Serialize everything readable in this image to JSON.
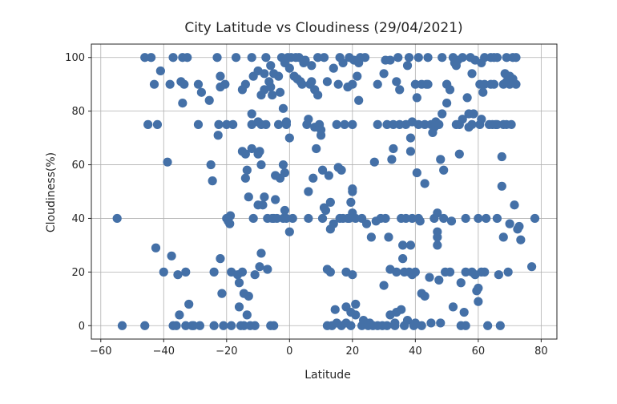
{
  "chart_data": {
    "type": "scatter",
    "title": "City Latitude vs Cloudiness (29/04/2021)",
    "xlabel": "Latitude",
    "ylabel": "Cloudiness(%)",
    "xlim": [
      -63,
      85
    ],
    "ylim": [
      -5,
      105
    ],
    "xticks": [
      -60,
      -40,
      -20,
      0,
      20,
      40,
      60,
      80
    ],
    "yticks": [
      0,
      20,
      40,
      60,
      80,
      100
    ],
    "xtick_labels": [
      "−60",
      "−40",
      "−20",
      "0",
      "20",
      "40",
      "60",
      "80"
    ],
    "ytick_labels": [
      "0",
      "20",
      "40",
      "60",
      "80",
      "100"
    ],
    "grid": true,
    "colors": {
      "marker": "#4470a7",
      "grid": "#b0b0b0",
      "axis": "#262626"
    },
    "points": [
      [
        -54.8,
        40
      ],
      [
        -53.2,
        0
      ],
      [
        -46,
        0
      ],
      [
        -46,
        100
      ],
      [
        -45,
        75
      ],
      [
        -44,
        100
      ],
      [
        -43,
        90
      ],
      [
        -42,
        75
      ],
      [
        -42.5,
        29
      ],
      [
        -41,
        95
      ],
      [
        -40,
        20
      ],
      [
        -38.8,
        61
      ],
      [
        -38,
        90
      ],
      [
        -37.5,
        26
      ],
      [
        -37,
        100
      ],
      [
        -37,
        0
      ],
      [
        -36,
        0
      ],
      [
        -35.5,
        19
      ],
      [
        -35,
        4
      ],
      [
        -34.5,
        91
      ],
      [
        -34,
        100
      ],
      [
        -34,
        83
      ],
      [
        -33.5,
        90
      ],
      [
        -33,
        20
      ],
      [
        -33,
        0
      ],
      [
        -32.5,
        100
      ],
      [
        -32,
        8
      ],
      [
        -31,
        0
      ],
      [
        -30.5,
        0
      ],
      [
        -29,
        75
      ],
      [
        -29,
        90
      ],
      [
        -28.5,
        0
      ],
      [
        -28,
        87
      ],
      [
        -25.5,
        84
      ],
      [
        -25,
        60
      ],
      [
        -24.5,
        54
      ],
      [
        -24,
        20
      ],
      [
        -24,
        0
      ],
      [
        -23,
        100
      ],
      [
        -22.7,
        71
      ],
      [
        -22.5,
        75
      ],
      [
        -22,
        93
      ],
      [
        -22,
        89
      ],
      [
        -22,
        25
      ],
      [
        -21.5,
        12
      ],
      [
        -21,
        0
      ],
      [
        -20.5,
        90
      ],
      [
        -20,
        75
      ],
      [
        -20,
        40
      ],
      [
        -19.5,
        39
      ],
      [
        -19,
        38
      ],
      [
        -18.8,
        41
      ],
      [
        -18.5,
        20
      ],
      [
        -18.5,
        0
      ],
      [
        -18,
        75
      ],
      [
        -17,
        100
      ],
      [
        -16.5,
        19
      ],
      [
        -16,
        16
      ],
      [
        -16,
        7
      ],
      [
        -15.5,
        0
      ],
      [
        -15,
        88
      ],
      [
        -15,
        65
      ],
      [
        -15,
        20
      ],
      [
        -14.5,
        12
      ],
      [
        -14.5,
        0
      ],
      [
        -14,
        90
      ],
      [
        -14,
        64
      ],
      [
        -14,
        55
      ],
      [
        -13.5,
        58
      ],
      [
        -13.5,
        4
      ],
      [
        -13,
        48
      ],
      [
        -13,
        11
      ],
      [
        -12.5,
        0
      ],
      [
        -12,
        100
      ],
      [
        -12,
        79
      ],
      [
        -12,
        75
      ],
      [
        -12,
        66
      ],
      [
        -11.5,
        93
      ],
      [
        -11.5,
        40
      ],
      [
        -11,
        19
      ],
      [
        -11,
        0
      ],
      [
        -10,
        45
      ],
      [
        -10,
        64
      ],
      [
        -10,
        76
      ],
      [
        -10,
        95
      ],
      [
        -9.5,
        22
      ],
      [
        -9.5,
        65
      ],
      [
        -9,
        60
      ],
      [
        -9,
        27
      ],
      [
        -9,
        86
      ],
      [
        -9,
        75
      ],
      [
        -8.5,
        45
      ],
      [
        -8,
        94
      ],
      [
        -8,
        88
      ],
      [
        -8,
        48
      ],
      [
        -7.5,
        100
      ],
      [
        -7.5,
        75
      ],
      [
        -7,
        21
      ],
      [
        -7,
        40
      ],
      [
        -6.5,
        91
      ],
      [
        -6,
        97
      ],
      [
        -6,
        89
      ],
      [
        -6,
        0
      ],
      [
        -5.5,
        40
      ],
      [
        -5.5,
        86
      ],
      [
        -5,
        94
      ],
      [
        -5,
        40
      ],
      [
        -5,
        0
      ],
      [
        -4.5,
        47
      ],
      [
        -4.5,
        56
      ],
      [
        -4,
        40
      ],
      [
        -3.5,
        93
      ],
      [
        -3.5,
        75
      ],
      [
        -3,
        87
      ],
      [
        -3,
        55
      ],
      [
        -2.5,
        100
      ],
      [
        -2,
        81
      ],
      [
        -2,
        60
      ],
      [
        -2,
        40
      ],
      [
        -1.5,
        98
      ],
      [
        -1.5,
        57
      ],
      [
        -1.5,
        43
      ],
      [
        -1,
        76
      ],
      [
        -1,
        75
      ],
      [
        -1,
        40
      ],
      [
        -0.5,
        100
      ],
      [
        0,
        35
      ],
      [
        0,
        70
      ],
      [
        0,
        96
      ],
      [
        0.5,
        100
      ],
      [
        1,
        40
      ],
      [
        1.5,
        93
      ],
      [
        2,
        100
      ],
      [
        2.5,
        92
      ],
      [
        3,
        100
      ],
      [
        3.5,
        91
      ],
      [
        4,
        90
      ],
      [
        4.5,
        98
      ],
      [
        5,
        99
      ],
      [
        5.5,
        75
      ],
      [
        6,
        77
      ],
      [
        6,
        50
      ],
      [
        6,
        40
      ],
      [
        6.5,
        90
      ],
      [
        7,
        97
      ],
      [
        7,
        91
      ],
      [
        7.5,
        55
      ],
      [
        8,
        74
      ],
      [
        8,
        88
      ],
      [
        8.5,
        66
      ],
      [
        9,
        100
      ],
      [
        9,
        86
      ],
      [
        9.5,
        75
      ],
      [
        10,
        71
      ],
      [
        10,
        73
      ],
      [
        10.5,
        40
      ],
      [
        10.5,
        58
      ],
      [
        11,
        44
      ],
      [
        11,
        100
      ],
      [
        11.5,
        43
      ],
      [
        12,
        91
      ],
      [
        12,
        21
      ],
      [
        12,
        0
      ],
      [
        12.5,
        56
      ],
      [
        13,
        46
      ],
      [
        13,
        36
      ],
      [
        13,
        20
      ],
      [
        13.5,
        0
      ],
      [
        14,
        38
      ],
      [
        14,
        96
      ],
      [
        14.5,
        6
      ],
      [
        15,
        1
      ],
      [
        15,
        75
      ],
      [
        15.5,
        59
      ],
      [
        15.5,
        90
      ],
      [
        16,
        100
      ],
      [
        16,
        40
      ],
      [
        16.5,
        0
      ],
      [
        16.5,
        58
      ],
      [
        17,
        40
      ],
      [
        17,
        98
      ],
      [
        17.5,
        75
      ],
      [
        18,
        20
      ],
      [
        18,
        7
      ],
      [
        18,
        1
      ],
      [
        18.5,
        89
      ],
      [
        18.5,
        40
      ],
      [
        19,
        40
      ],
      [
        19,
        100
      ],
      [
        19.5,
        46
      ],
      [
        19.5,
        5
      ],
      [
        19.5,
        0
      ],
      [
        20,
        50
      ],
      [
        20,
        51
      ],
      [
        20,
        42
      ],
      [
        20,
        75
      ],
      [
        20,
        90
      ],
      [
        20,
        19
      ],
      [
        20.5,
        99
      ],
      [
        21,
        8
      ],
      [
        21,
        4
      ],
      [
        21,
        40
      ],
      [
        21.5,
        93
      ],
      [
        22,
        84
      ],
      [
        22,
        98
      ],
      [
        22.5,
        100
      ],
      [
        23,
        0
      ],
      [
        23,
        40
      ],
      [
        23.5,
        2
      ],
      [
        24,
        100
      ],
      [
        24.5,
        38
      ],
      [
        25,
        0
      ],
      [
        25.5,
        1
      ],
      [
        26,
        33
      ],
      [
        26.5,
        0
      ],
      [
        27,
        61
      ],
      [
        27.5,
        39
      ],
      [
        28,
        75
      ],
      [
        28,
        0
      ],
      [
        28,
        90
      ],
      [
        29,
        40
      ],
      [
        29.5,
        0
      ],
      [
        30,
        15
      ],
      [
        30,
        94
      ],
      [
        30.5,
        40
      ],
      [
        30.5,
        99
      ],
      [
        31,
        0
      ],
      [
        31,
        75
      ],
      [
        31.5,
        33
      ],
      [
        32,
        4
      ],
      [
        32,
        21
      ],
      [
        32,
        99
      ],
      [
        32.5,
        62
      ],
      [
        33,
        66
      ],
      [
        33,
        75
      ],
      [
        33.5,
        1
      ],
      [
        33.5,
        0
      ],
      [
        34,
        91
      ],
      [
        34,
        5
      ],
      [
        34,
        20
      ],
      [
        34.5,
        100
      ],
      [
        35,
        88
      ],
      [
        35,
        75
      ],
      [
        35.5,
        6
      ],
      [
        35.5,
        40
      ],
      [
        36,
        30
      ],
      [
        36,
        25
      ],
      [
        36.5,
        20
      ],
      [
        36.5,
        0
      ],
      [
        37,
        75
      ],
      [
        37,
        40
      ],
      [
        37.5,
        2
      ],
      [
        37.5,
        97
      ],
      [
        38,
        100
      ],
      [
        38,
        20
      ],
      [
        38.5,
        65
      ],
      [
        38.5,
        70
      ],
      [
        38.5,
        30
      ],
      [
        39,
        40
      ],
      [
        39,
        76
      ],
      [
        39,
        19
      ],
      [
        39.5,
        0
      ],
      [
        40,
        90
      ],
      [
        40,
        20
      ],
      [
        40,
        1
      ],
      [
        40.5,
        57
      ],
      [
        40.5,
        85
      ],
      [
        41,
        40
      ],
      [
        41,
        75
      ],
      [
        41,
        100
      ],
      [
        41.5,
        39
      ],
      [
        42,
        12
      ],
      [
        42,
        90
      ],
      [
        42,
        0
      ],
      [
        43,
        53
      ],
      [
        43,
        75
      ],
      [
        43,
        11
      ],
      [
        43.5,
        90
      ],
      [
        44,
        90
      ],
      [
        44,
        100
      ],
      [
        44.5,
        18
      ],
      [
        45,
        75
      ],
      [
        45,
        1
      ],
      [
        45.5,
        72
      ],
      [
        46,
        74
      ],
      [
        46,
        40
      ],
      [
        46.5,
        76
      ],
      [
        47,
        30
      ],
      [
        47,
        33
      ],
      [
        47,
        35
      ],
      [
        47,
        42
      ],
      [
        47.5,
        75
      ],
      [
        47.5,
        17
      ],
      [
        48,
        1
      ],
      [
        48,
        62
      ],
      [
        48.5,
        79
      ],
      [
        48.5,
        100
      ],
      [
        49,
        58
      ],
      [
        49,
        40
      ],
      [
        49.5,
        20
      ],
      [
        50,
        90
      ],
      [
        50,
        83
      ],
      [
        50,
        90
      ],
      [
        51,
        88
      ],
      [
        51,
        20
      ],
      [
        51.5,
        39
      ],
      [
        52,
        7
      ],
      [
        52,
        100
      ],
      [
        52.5,
        98
      ],
      [
        53,
        75
      ],
      [
        53,
        97
      ],
      [
        53.5,
        99
      ],
      [
        54,
        64
      ],
      [
        54,
        75
      ],
      [
        54.5,
        0
      ],
      [
        54.5,
        16
      ],
      [
        55,
        100
      ],
      [
        55,
        77
      ],
      [
        55.5,
        5
      ],
      [
        56,
        20
      ],
      [
        56,
        0
      ],
      [
        56,
        40
      ],
      [
        56.5,
        85
      ],
      [
        57,
        74
      ],
      [
        57,
        79
      ],
      [
        57.5,
        100
      ],
      [
        58,
        75
      ],
      [
        58,
        94
      ],
      [
        58,
        20
      ],
      [
        58.5,
        79
      ],
      [
        59,
        99
      ],
      [
        59,
        19
      ],
      [
        59.5,
        13
      ],
      [
        60,
        9
      ],
      [
        60,
        40
      ],
      [
        60,
        14
      ],
      [
        60.5,
        75
      ],
      [
        60.5,
        90
      ],
      [
        61,
        20
      ],
      [
        61,
        98
      ],
      [
        61,
        77
      ],
      [
        61.5,
        87
      ],
      [
        62,
        100
      ],
      [
        62,
        90
      ],
      [
        62,
        20
      ],
      [
        62.5,
        40
      ],
      [
        63,
        0
      ],
      [
        63.5,
        75
      ],
      [
        64,
        90
      ],
      [
        64,
        100
      ],
      [
        64.5,
        75
      ],
      [
        65,
        90
      ],
      [
        65,
        100
      ],
      [
        65.5,
        75
      ],
      [
        66,
        100
      ],
      [
        66,
        75
      ],
      [
        66,
        40
      ],
      [
        66.5,
        19
      ],
      [
        67,
        0
      ],
      [
        67.5,
        63
      ],
      [
        67.5,
        52
      ],
      [
        68,
        90
      ],
      [
        68,
        75
      ],
      [
        68,
        33
      ],
      [
        68.5,
        94
      ],
      [
        69,
        91
      ],
      [
        69,
        100
      ],
      [
        69,
        75
      ],
      [
        69.5,
        20
      ],
      [
        70,
        38
      ],
      [
        70,
        93
      ],
      [
        70,
        90
      ],
      [
        70.5,
        75
      ],
      [
        71,
        92
      ],
      [
        71,
        100
      ],
      [
        71.5,
        45
      ],
      [
        72,
        90
      ],
      [
        72,
        100
      ],
      [
        72.5,
        36
      ],
      [
        73,
        37
      ],
      [
        73.5,
        32
      ],
      [
        77,
        22
      ],
      [
        78,
        40
      ]
    ]
  }
}
